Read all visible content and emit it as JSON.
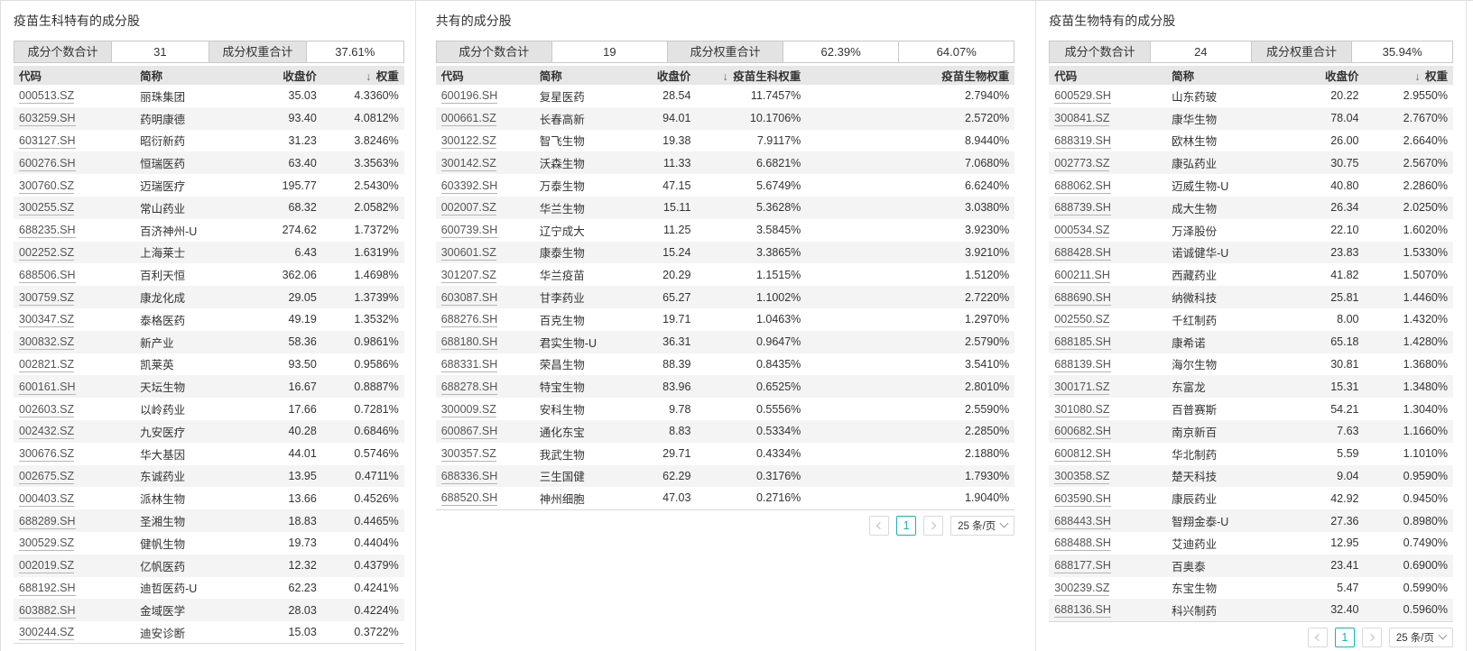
{
  "colors": {
    "accent_teal": "#1ab3b0",
    "table_header_bg": "#e7e7e7",
    "row_stripe_bg": "#f4f4f4",
    "stat_label_bg": "#e3e3e3"
  },
  "panels": [
    {
      "title": "疫苗生科特有的成分股",
      "stats": [
        {
          "type": "label",
          "text": "成分个数合计"
        },
        {
          "type": "value",
          "text": "31"
        },
        {
          "type": "label",
          "text": "成分权重合计"
        },
        {
          "type": "value",
          "text": "37.61%"
        }
      ],
      "columns": [
        {
          "label": "代码"
        },
        {
          "label": "简称"
        },
        {
          "label": "收盘价"
        },
        {
          "label": "权重",
          "sort": "desc"
        }
      ],
      "rows": [
        [
          "000513.SZ",
          "丽珠集团",
          "35.03",
          "4.3360%"
        ],
        [
          "603259.SH",
          "药明康德",
          "93.40",
          "4.0812%"
        ],
        [
          "603127.SH",
          "昭衍新药",
          "31.23",
          "3.8246%"
        ],
        [
          "600276.SH",
          "恒瑞医药",
          "63.40",
          "3.3563%"
        ],
        [
          "300760.SZ",
          "迈瑞医疗",
          "195.77",
          "2.5430%"
        ],
        [
          "300255.SZ",
          "常山药业",
          "68.32",
          "2.0582%"
        ],
        [
          "688235.SH",
          "百济神州-U",
          "274.62",
          "1.7372%"
        ],
        [
          "002252.SZ",
          "上海莱士",
          "6.43",
          "1.6319%"
        ],
        [
          "688506.SH",
          "百利天恒",
          "362.06",
          "1.4698%"
        ],
        [
          "300759.SZ",
          "康龙化成",
          "29.05",
          "1.3739%"
        ],
        [
          "300347.SZ",
          "泰格医药",
          "49.19",
          "1.3532%"
        ],
        [
          "300832.SZ",
          "新产业",
          "58.36",
          "0.9861%"
        ],
        [
          "002821.SZ",
          "凯莱英",
          "93.50",
          "0.9586%"
        ],
        [
          "600161.SH",
          "天坛生物",
          "16.67",
          "0.8887%"
        ],
        [
          "002603.SZ",
          "以岭药业",
          "17.66",
          "0.7281%"
        ],
        [
          "002432.SZ",
          "九安医疗",
          "40.28",
          "0.6846%"
        ],
        [
          "300676.SZ",
          "华大基因",
          "44.01",
          "0.5746%"
        ],
        [
          "002675.SZ",
          "东诚药业",
          "13.95",
          "0.4711%"
        ],
        [
          "000403.SZ",
          "派林生物",
          "13.66",
          "0.4526%"
        ],
        [
          "688289.SH",
          "圣湘生物",
          "18.83",
          "0.4465%"
        ],
        [
          "300529.SZ",
          "健帆生物",
          "19.73",
          "0.4404%"
        ],
        [
          "002019.SZ",
          "亿帆医药",
          "12.32",
          "0.4379%"
        ],
        [
          "688192.SH",
          "迪哲医药-U",
          "62.23",
          "0.4241%"
        ],
        [
          "603882.SH",
          "金域医学",
          "28.03",
          "0.4224%"
        ],
        [
          "300244.SZ",
          "迪安诊断",
          "15.03",
          "0.3722%"
        ]
      ]
    },
    {
      "title": "共有的成分股",
      "stats": [
        {
          "type": "label",
          "text": "成分个数合计"
        },
        {
          "type": "value",
          "text": "19"
        },
        {
          "type": "label",
          "text": "成分权重合计"
        },
        {
          "type": "value",
          "text": "62.39%"
        },
        {
          "type": "value",
          "text": "64.07%"
        }
      ],
      "columns": [
        {
          "label": "代码"
        },
        {
          "label": "简称"
        },
        {
          "label": "收盘价"
        },
        {
          "label": "疫苗生科权重",
          "sort": "desc"
        },
        {
          "label": "疫苗生物权重"
        }
      ],
      "rows": [
        [
          "600196.SH",
          "复星医药",
          "28.54",
          "11.7457%",
          "2.7940%"
        ],
        [
          "000661.SZ",
          "长春高新",
          "94.01",
          "10.1706%",
          "2.5720%"
        ],
        [
          "300122.SZ",
          "智飞生物",
          "19.38",
          "7.9117%",
          "8.9440%"
        ],
        [
          "300142.SZ",
          "沃森生物",
          "11.33",
          "6.6821%",
          "7.0680%"
        ],
        [
          "603392.SH",
          "万泰生物",
          "47.15",
          "5.6749%",
          "6.6240%"
        ],
        [
          "002007.SZ",
          "华兰生物",
          "15.11",
          "5.3628%",
          "3.0380%"
        ],
        [
          "600739.SH",
          "辽宁成大",
          "11.25",
          "3.5845%",
          "3.9230%"
        ],
        [
          "300601.SZ",
          "康泰生物",
          "15.24",
          "3.3865%",
          "3.9210%"
        ],
        [
          "301207.SZ",
          "华兰疫苗",
          "20.29",
          "1.1515%",
          "1.5120%"
        ],
        [
          "603087.SH",
          "甘李药业",
          "65.27",
          "1.1002%",
          "2.7220%"
        ],
        [
          "688276.SH",
          "百克生物",
          "19.71",
          "1.0463%",
          "1.2970%"
        ],
        [
          "688180.SH",
          "君实生物-U",
          "36.31",
          "0.9647%",
          "2.5790%"
        ],
        [
          "688331.SH",
          "荣昌生物",
          "88.39",
          "0.8435%",
          "3.5410%"
        ],
        [
          "688278.SH",
          "特宝生物",
          "83.96",
          "0.6525%",
          "2.8010%"
        ],
        [
          "300009.SZ",
          "安科生物",
          "9.78",
          "0.5556%",
          "2.5590%"
        ],
        [
          "600867.SH",
          "通化东宝",
          "8.83",
          "0.5334%",
          "2.2850%"
        ],
        [
          "300357.SZ",
          "我武生物",
          "29.71",
          "0.4334%",
          "2.1880%"
        ],
        [
          "688336.SH",
          "三生国健",
          "62.29",
          "0.3176%",
          "1.7930%"
        ],
        [
          "688520.SH",
          "神州细胞",
          "47.03",
          "0.2716%",
          "1.9040%"
        ]
      ],
      "pagination": {
        "page": "1",
        "page_size": "25 条/页"
      }
    },
    {
      "title": "疫苗生物特有的成分股",
      "stats": [
        {
          "type": "label",
          "text": "成分个数合计"
        },
        {
          "type": "value",
          "text": "24"
        },
        {
          "type": "label",
          "text": "成分权重合计"
        },
        {
          "type": "value",
          "text": "35.94%"
        }
      ],
      "columns": [
        {
          "label": "代码"
        },
        {
          "label": "简称"
        },
        {
          "label": "收盘价"
        },
        {
          "label": "权重",
          "sort": "desc"
        }
      ],
      "rows": [
        [
          "600529.SH",
          "山东药玻",
          "20.22",
          "2.9550%"
        ],
        [
          "300841.SZ",
          "康华生物",
          "78.04",
          "2.7670%"
        ],
        [
          "688319.SH",
          "欧林生物",
          "26.00",
          "2.6640%"
        ],
        [
          "002773.SZ",
          "康弘药业",
          "30.75",
          "2.5670%"
        ],
        [
          "688062.SH",
          "迈威生物-U",
          "40.80",
          "2.2860%"
        ],
        [
          "688739.SH",
          "成大生物",
          "26.34",
          "2.0250%"
        ],
        [
          "000534.SZ",
          "万泽股份",
          "22.10",
          "1.6020%"
        ],
        [
          "688428.SH",
          "诺诚健华-U",
          "23.83",
          "1.5330%"
        ],
        [
          "600211.SH",
          "西藏药业",
          "41.82",
          "1.5070%"
        ],
        [
          "688690.SH",
          "纳微科技",
          "25.81",
          "1.4460%"
        ],
        [
          "002550.SZ",
          "千红制药",
          "8.00",
          "1.4320%"
        ],
        [
          "688185.SH",
          "康希诺",
          "65.18",
          "1.4280%"
        ],
        [
          "688139.SH",
          "海尔生物",
          "30.81",
          "1.3680%"
        ],
        [
          "300171.SZ",
          "东富龙",
          "15.31",
          "1.3480%"
        ],
        [
          "301080.SZ",
          "百普赛斯",
          "54.21",
          "1.3040%"
        ],
        [
          "600682.SH",
          "南京新百",
          "7.63",
          "1.1660%"
        ],
        [
          "600812.SH",
          "华北制药",
          "5.59",
          "1.1010%"
        ],
        [
          "300358.SZ",
          "楚天科技",
          "9.04",
          "0.9590%"
        ],
        [
          "603590.SH",
          "康辰药业",
          "42.92",
          "0.9450%"
        ],
        [
          "688443.SH",
          "智翔金泰-U",
          "27.36",
          "0.8980%"
        ],
        [
          "688488.SH",
          "艾迪药业",
          "12.95",
          "0.7490%"
        ],
        [
          "688177.SH",
          "百奥泰",
          "23.41",
          "0.6900%"
        ],
        [
          "300239.SZ",
          "东宝生物",
          "5.47",
          "0.5990%"
        ],
        [
          "688136.SH",
          "科兴制药",
          "32.40",
          "0.5960%"
        ]
      ],
      "pagination": {
        "page": "1",
        "page_size": "25 条/页"
      }
    }
  ]
}
